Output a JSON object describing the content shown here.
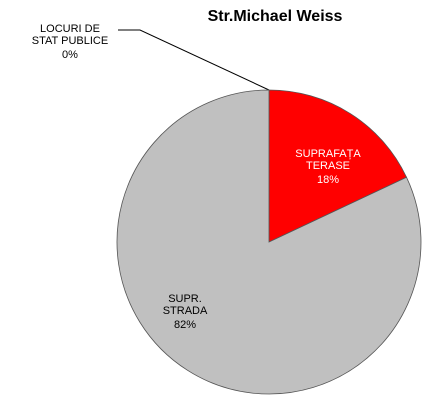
{
  "chart_data": {
    "type": "pie",
    "title": "Str.Michael Weiss",
    "categories": [
      "LOCURI DE STAT PUBLICE",
      "SUPRAFAȚA TERASE",
      "SUPR. STRADA"
    ],
    "values": [
      0,
      18,
      82
    ],
    "value_labels": [
      "0%",
      "18%",
      "82%"
    ],
    "colors": [
      "#4472c4",
      "#ff0000",
      "#c0c0c0"
    ]
  }
}
